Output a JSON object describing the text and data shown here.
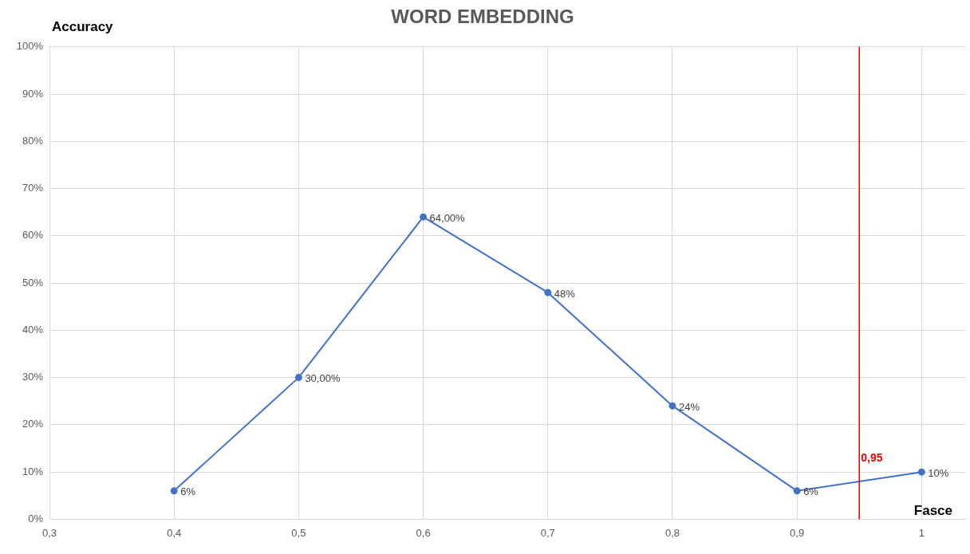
{
  "chart_data": {
    "type": "line",
    "title": "WORD EMBEDDING",
    "xlabel": "Fasce",
    "ylabel": "Accuracy",
    "x": [
      0.4,
      0.5,
      0.6,
      0.7,
      0.8,
      0.9,
      1
    ],
    "series": [
      {
        "color": "#4472c4",
        "values": [
          6,
          30,
          64,
          48,
          24,
          6,
          10
        ],
        "value_labels": [
          "6%",
          "30,00%",
          "64,00%",
          "48%",
          "24%",
          "6%",
          "10%"
        ]
      }
    ],
    "xlim": [
      0.3,
      1.035
    ],
    "xticks": [
      {
        "value": 0.3,
        "label": "0,3"
      },
      {
        "value": 0.4,
        "label": "0,4"
      },
      {
        "value": 0.5,
        "label": "0,5"
      },
      {
        "value": 0.6,
        "label": "0,6"
      },
      {
        "value": 0.7,
        "label": "0,7"
      },
      {
        "value": 0.8,
        "label": "0,8"
      },
      {
        "value": 0.9,
        "label": "0,9"
      },
      {
        "value": 1,
        "label": "1"
      }
    ],
    "ylim": [
      0,
      100
    ],
    "yticks": [
      {
        "value": 0,
        "label": "0%"
      },
      {
        "value": 10,
        "label": "10%"
      },
      {
        "value": 20,
        "label": "20%"
      },
      {
        "value": 30,
        "label": "30%"
      },
      {
        "value": 40,
        "label": "40%"
      },
      {
        "value": 50,
        "label": "50%"
      },
      {
        "value": 60,
        "label": "60%"
      },
      {
        "value": 70,
        "label": "70%"
      },
      {
        "value": 80,
        "label": "80%"
      },
      {
        "value": 90,
        "label": "90%"
      },
      {
        "value": 100,
        "label": "100%"
      }
    ],
    "ref_lines": [
      {
        "axis": "x",
        "value": 0.95,
        "label": "0,95",
        "color": "#e00000"
      }
    ],
    "grid": true,
    "legend": false,
    "marker": "circle",
    "line_style": "solid"
  }
}
